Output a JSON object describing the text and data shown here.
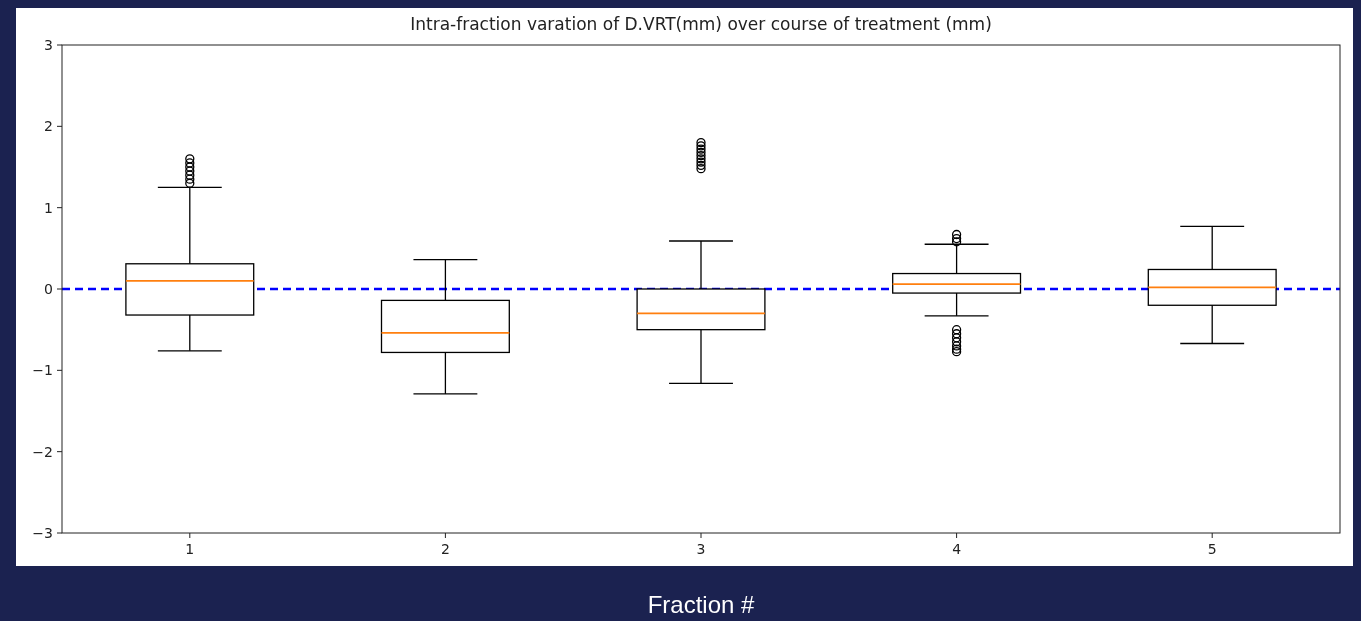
{
  "chart_data": {
    "type": "box",
    "title": "Intra-fraction varation of D.VRT(mm) over course of treatment (mm)",
    "xlabel": "Fraction #",
    "categories": [
      "1",
      "2",
      "3",
      "4",
      "5"
    ],
    "boxes": [
      {
        "low": -0.76,
        "q1": -0.32,
        "median": 0.1,
        "q3": 0.31,
        "high": 1.25,
        "outliers": [
          1.3,
          1.35,
          1.4,
          1.45,
          1.5,
          1.55,
          1.6
        ]
      },
      {
        "low": -1.29,
        "q1": -0.78,
        "median": -0.54,
        "q3": -0.14,
        "high": 0.36
      },
      {
        "low": -1.16,
        "q1": -0.5,
        "median": -0.3,
        "q3": 0,
        "high": 0.59,
        "outliers": [
          1.48,
          1.52,
          1.56,
          1.6,
          1.64,
          1.68,
          1.72,
          1.76,
          1.8
        ]
      },
      {
        "low": -0.33,
        "q1": -0.05,
        "median": 0.06,
        "q3": 0.19,
        "high": 0.55,
        "outliers": [
          0.58,
          0.62,
          0.67,
          -0.5,
          -0.55,
          -0.6,
          -0.65,
          -0.7,
          -0.74,
          -0.77
        ]
      },
      {
        "low": -0.67,
        "q1": -0.2,
        "median": 0.02,
        "q3": 0.24,
        "high": 0.77
      }
    ],
    "color": "#000000",
    "ylim": [
      -3,
      3
    ],
    "yticks": [
      {
        "value": -3,
        "label": "−3"
      },
      {
        "value": -2,
        "label": "−2"
      },
      {
        "value": -1,
        "label": "−1"
      },
      0,
      1,
      2,
      3
    ],
    "ref_lines": [
      {
        "axis": "y",
        "value": 0,
        "color": "#0000ff",
        "line_style": "dashed"
      }
    ]
  }
}
